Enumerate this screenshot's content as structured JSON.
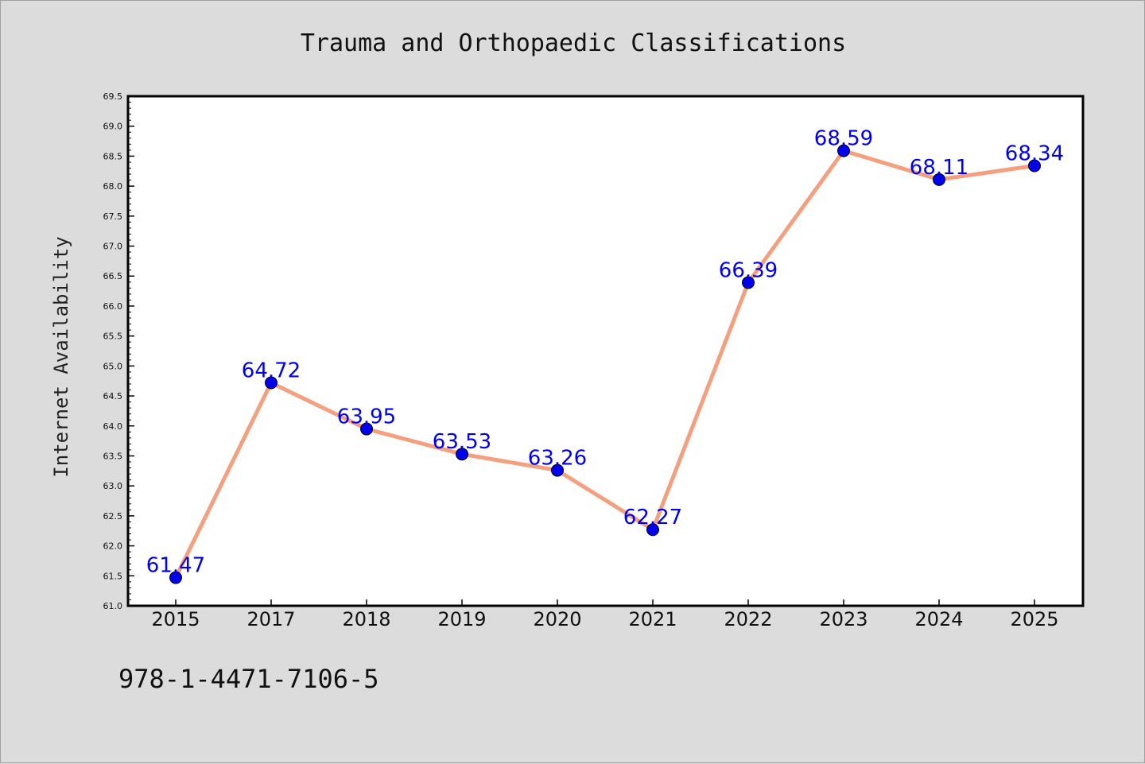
{
  "chart_data": {
    "type": "line",
    "title": "Trauma and Orthopaedic Classifications",
    "xlabel": "",
    "ylabel": "Internet Availability",
    "categories": [
      "2015",
      "2017",
      "2018",
      "2019",
      "2020",
      "2021",
      "2022",
      "2023",
      "2024",
      "2025"
    ],
    "series": [
      {
        "values": [
          61.47,
          64.72,
          63.95,
          63.53,
          63.26,
          62.27,
          66.39,
          68.59,
          68.11,
          68.34
        ],
        "labels": [
          "61.47",
          "64.72",
          "63.95",
          "63.53",
          "63.26",
          "62.27",
          "66.39",
          "68.59",
          "68.11",
          "68.34"
        ],
        "line_color": "#f4a07e",
        "marker_color": "#0000ee"
      }
    ],
    "ylim": [
      61.0,
      69.5
    ],
    "yticks": [
      "61.0",
      "61.5",
      "62.0",
      "62.5",
      "63.0",
      "63.5",
      "64.0",
      "64.5",
      "65.0",
      "65.5",
      "66.0",
      "66.5",
      "67.0",
      "67.5",
      "68.0",
      "68.5",
      "69.0",
      "69.5"
    ],
    "grid": false,
    "legend": "none",
    "plot_background": "#ffffff",
    "page_background": "#dcdcdc",
    "footnote": "978-1-4471-7106-5"
  }
}
